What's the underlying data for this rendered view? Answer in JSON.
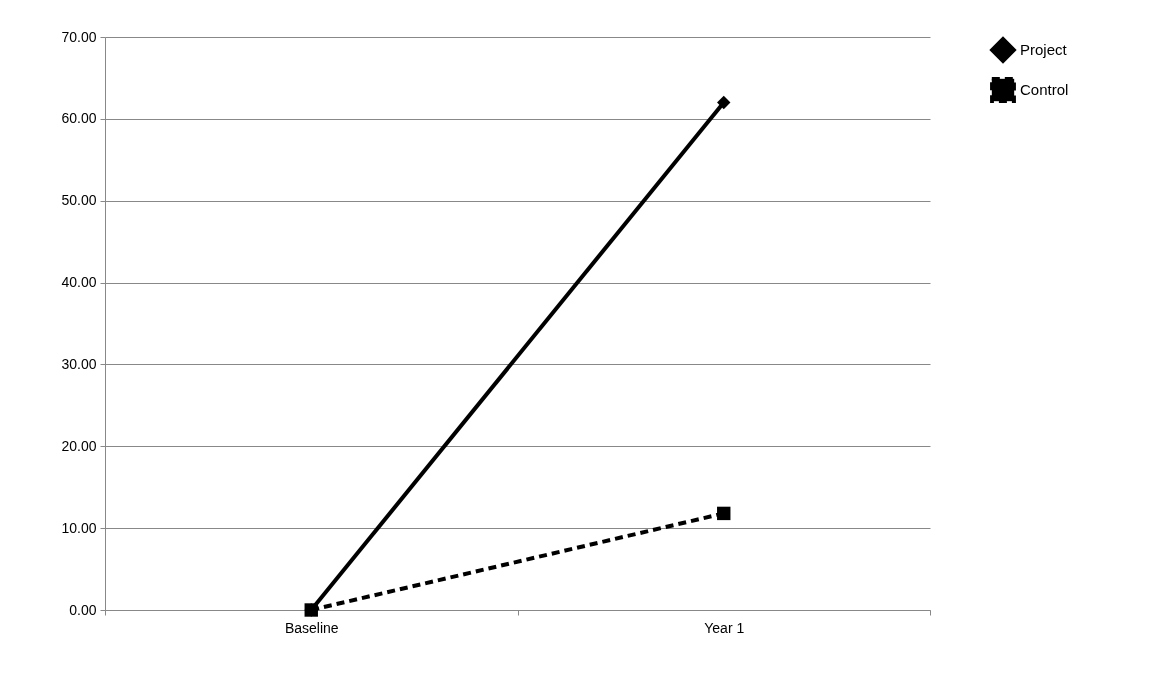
{
  "chart_data": {
    "type": "line",
    "categories": [
      "Baseline",
      "Year 1"
    ],
    "series": [
      {
        "name": "Project",
        "color": "#000000",
        "values": [
          0,
          62
        ],
        "marker": "diamond",
        "line_style": "solid"
      },
      {
        "name": "Control",
        "color": "#000000",
        "values": [
          0,
          11.8
        ],
        "marker": "square",
        "line_style": "dashed"
      }
    ],
    "ylim": [
      0,
      70
    ],
    "yticks": [
      {
        "value": 0,
        "label": "0.00"
      },
      {
        "value": 10,
        "label": "10.00"
      },
      {
        "value": 20,
        "label": "20.00"
      },
      {
        "value": 30,
        "label": "30.00"
      },
      {
        "value": 40,
        "label": "40.00"
      },
      {
        "value": 50,
        "label": "50.00"
      },
      {
        "value": 60,
        "label": "60.00"
      },
      {
        "value": 70,
        "label": "70.00"
      }
    ],
    "grid": "y",
    "legend": "right"
  }
}
